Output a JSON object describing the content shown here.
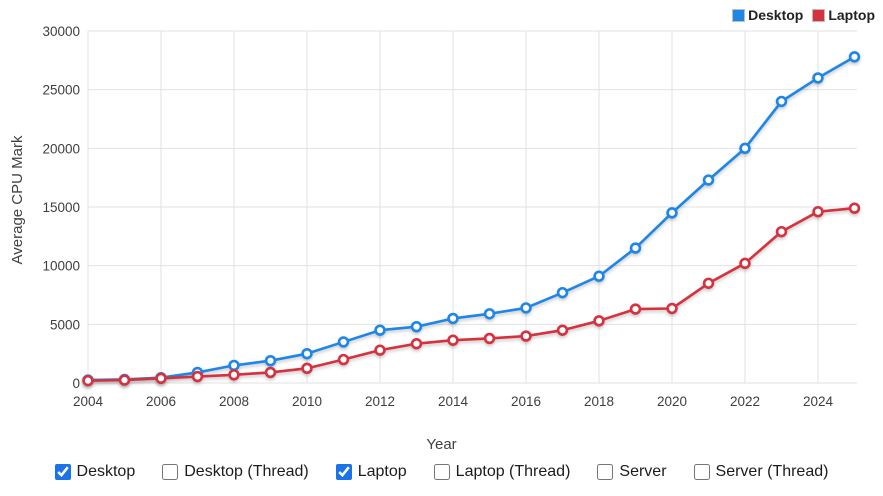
{
  "chart_data": {
    "type": "line",
    "title": "",
    "xlabel": "Year",
    "ylabel": "Average CPU Mark",
    "x": [
      2004,
      2005,
      2006,
      2007,
      2008,
      2009,
      2010,
      2011,
      2012,
      2013,
      2014,
      2015,
      2016,
      2017,
      2018,
      2019,
      2020,
      2021,
      2022,
      2023,
      2024,
      2025
    ],
    "series": [
      {
        "name": "Desktop",
        "color": "#1e86e8",
        "values": [
          250,
          300,
          450,
          900,
          1500,
          1900,
          2500,
          3500,
          4500,
          4800,
          5500,
          5900,
          6400,
          7700,
          9100,
          11500,
          14500,
          17300,
          20000,
          24000,
          26000,
          27800
        ]
      },
      {
        "name": "Laptop",
        "color": "#d5313f",
        "values": [
          200,
          250,
          400,
          550,
          700,
          900,
          1250,
          2000,
          2800,
          3350,
          3650,
          3800,
          4000,
          4500,
          5300,
          6300,
          6350,
          8500,
          10200,
          12900,
          14600,
          14900
        ]
      }
    ],
    "ylim": [
      0,
      30000
    ],
    "ytick_step": 5000,
    "yticks": [
      0,
      5000,
      10000,
      15000,
      20000,
      25000,
      30000
    ],
    "xticks": [
      2004,
      2006,
      2008,
      2010,
      2012,
      2014,
      2016,
      2018,
      2020,
      2022,
      2024
    ],
    "grid": true,
    "legend_position": "top-right",
    "grid_color": "#e2e2e2",
    "axis_text_color": "#3f3f3f",
    "marker": "open-circle"
  },
  "legend": {
    "items": [
      {
        "label": "Desktop",
        "color": "#1e86e8"
      },
      {
        "label": "Laptop",
        "color": "#d5313f"
      }
    ]
  },
  "controls": {
    "checkbox_accent_color": "#1a73e8",
    "checkboxes": [
      {
        "label": "Desktop",
        "checked": true
      },
      {
        "label": "Desktop (Thread)",
        "checked": false
      },
      {
        "label": "Laptop",
        "checked": true
      },
      {
        "label": "Laptop (Thread)",
        "checked": false
      },
      {
        "label": "Server",
        "checked": false
      },
      {
        "label": "Server (Thread)",
        "checked": false
      }
    ]
  }
}
